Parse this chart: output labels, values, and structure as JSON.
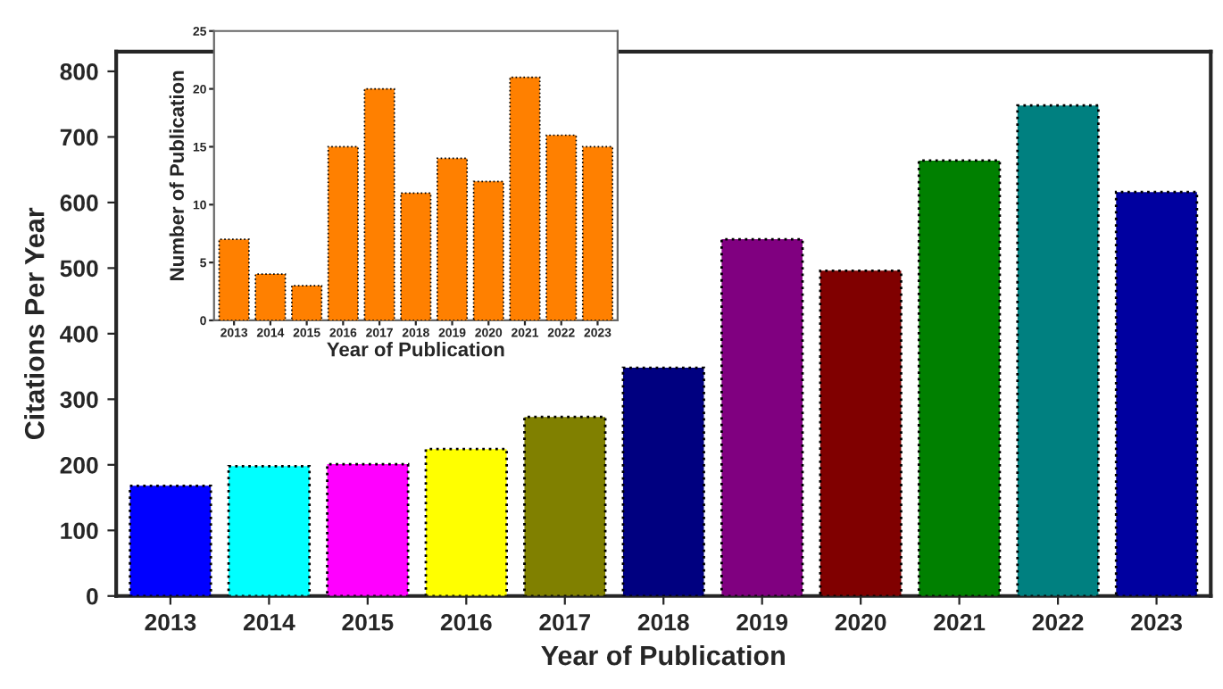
{
  "chart_data": [
    {
      "type": "bar",
      "xlabel": "Year of Publication",
      "ylabel": "Citations Per Year",
      "categories": [
        "2013",
        "2014",
        "2015",
        "2016",
        "2017",
        "2018",
        "2019",
        "2020",
        "2021",
        "2022",
        "2023"
      ],
      "values": [
        168,
        198,
        201,
        224,
        273,
        348,
        544,
        496,
        664,
        748,
        616
      ],
      "colors": [
        "#0000ff",
        "#00ffff",
        "#ff00ff",
        "#ffff00",
        "#808000",
        "#000080",
        "#800080",
        "#800000",
        "#008000",
        "#008080",
        "#0000a0"
      ],
      "ylim": [
        0,
        830
      ],
      "yticks": [
        0,
        100,
        200,
        300,
        400,
        500,
        600,
        700,
        800
      ],
      "grid": false,
      "line_style": "dotted"
    },
    {
      "type": "bar",
      "xlabel": "Year of Publication",
      "ylabel": "Number of Publication",
      "categories": [
        "2013",
        "2014",
        "2015",
        "2016",
        "2017",
        "2018",
        "2019",
        "2020",
        "2021",
        "2022",
        "2023"
      ],
      "values": [
        7,
        4,
        3,
        15,
        20,
        11,
        14,
        12,
        21,
        16,
        15
      ],
      "colors": [
        "#ff8000",
        "#ff8000",
        "#ff8000",
        "#ff8000",
        "#ff8000",
        "#ff8000",
        "#ff8000",
        "#ff8000",
        "#ff8000",
        "#ff8000",
        "#ff8000"
      ],
      "ylim": [
        0,
        25
      ],
      "yticks": [
        0,
        5,
        10,
        15,
        20,
        25
      ],
      "grid": false,
      "line_style": "dotted"
    }
  ]
}
